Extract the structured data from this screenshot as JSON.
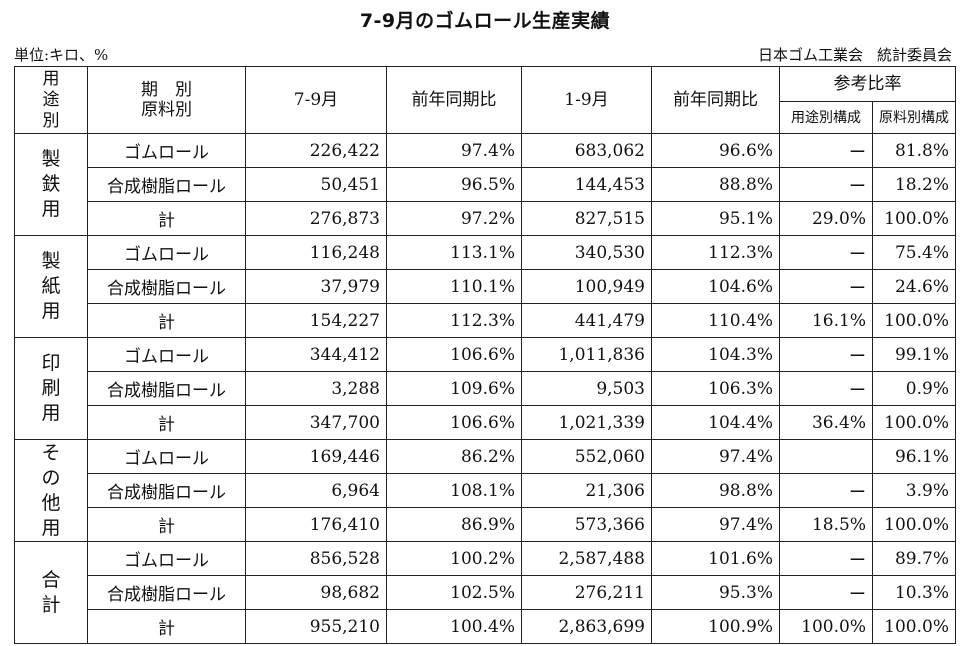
{
  "title": "7-9月のゴムロール生産実績",
  "unit": "単位:キロ、%",
  "org": [
    "日本ゴム工業会",
    "統計委員会"
  ],
  "header": {
    "usage": [
      "用",
      "途",
      "別"
    ],
    "period_material": [
      "期　別",
      "原料別"
    ],
    "q": "7-9月",
    "yoy1": "前年同期比",
    "ytd": "1-9月",
    "yoy2": "前年同期比",
    "ref": "参考比率",
    "ref_usage": "用途別構成",
    "ref_material": "原料別構成"
  },
  "groups": [
    {
      "name": [
        "製",
        "鉄",
        "用"
      ],
      "rows": [
        {
          "material": "ゴムロール",
          "q": "226,422",
          "yoy1": "97.4%",
          "ytd": "683,062",
          "yoy2": "96.6%",
          "usage_share": "ー",
          "material_share": "81.8%"
        },
        {
          "material": "合成樹脂ロール",
          "q": "50,451",
          "yoy1": "96.5%",
          "ytd": "144,453",
          "yoy2": "88.8%",
          "usage_share": "ー",
          "material_share": "18.2%"
        },
        {
          "material": "計",
          "q": "276,873",
          "yoy1": "97.2%",
          "ytd": "827,515",
          "yoy2": "95.1%",
          "usage_share": "29.0%",
          "material_share": "100.0%"
        }
      ]
    },
    {
      "name": [
        "製",
        "紙",
        "用"
      ],
      "rows": [
        {
          "material": "ゴムロール",
          "q": "116,248",
          "yoy1": "113.1%",
          "ytd": "340,530",
          "yoy2": "112.3%",
          "usage_share": "ー",
          "material_share": "75.4%"
        },
        {
          "material": "合成樹脂ロール",
          "q": "37,979",
          "yoy1": "110.1%",
          "ytd": "100,949",
          "yoy2": "104.6%",
          "usage_share": "ー",
          "material_share": "24.6%"
        },
        {
          "material": "計",
          "q": "154,227",
          "yoy1": "112.3%",
          "ytd": "441,479",
          "yoy2": "110.4%",
          "usage_share": "16.1%",
          "material_share": "100.0%"
        }
      ]
    },
    {
      "name": [
        "印",
        "刷",
        "用"
      ],
      "rows": [
        {
          "material": "ゴムロール",
          "q": "344,412",
          "yoy1": "106.6%",
          "ytd": "1,011,836",
          "yoy2": "104.3%",
          "usage_share": "ー",
          "material_share": "99.1%"
        },
        {
          "material": "合成樹脂ロール",
          "q": "3,288",
          "yoy1": "109.6%",
          "ytd": "9,503",
          "yoy2": "106.3%",
          "usage_share": "ー",
          "material_share": "0.9%"
        },
        {
          "material": "計",
          "q": "347,700",
          "yoy1": "106.6%",
          "ytd": "1,021,339",
          "yoy2": "104.4%",
          "usage_share": "36.4%",
          "material_share": "100.0%"
        }
      ]
    },
    {
      "name": [
        "そ",
        "の",
        "他",
        "用"
      ],
      "rows": [
        {
          "material": "ゴムロール",
          "q": "169,446",
          "yoy1": "86.2%",
          "ytd": "552,060",
          "yoy2": "97.4%",
          "usage_share": "",
          "material_share": "96.1%"
        },
        {
          "material": "合成樹脂ロール",
          "q": "6,964",
          "yoy1": "108.1%",
          "ytd": "21,306",
          "yoy2": "98.8%",
          "usage_share": "ー",
          "material_share": "3.9%"
        },
        {
          "material": "計",
          "q": "176,410",
          "yoy1": "86.9%",
          "ytd": "573,366",
          "yoy2": "97.4%",
          "usage_share": "18.5%",
          "material_share": "100.0%"
        }
      ]
    },
    {
      "name": [
        "合",
        "計"
      ],
      "rows": [
        {
          "material": "ゴムロール",
          "q": "856,528",
          "yoy1": "100.2%",
          "ytd": "2,587,488",
          "yoy2": "101.6%",
          "usage_share": "ー",
          "material_share": "89.7%"
        },
        {
          "material": "合成樹脂ロール",
          "q": "98,682",
          "yoy1": "102.5%",
          "ytd": "276,211",
          "yoy2": "95.3%",
          "usage_share": "ー",
          "material_share": "10.3%"
        },
        {
          "material": "計",
          "q": "955,210",
          "yoy1": "100.4%",
          "ytd": "2,863,699",
          "yoy2": "100.9%",
          "usage_share": "100.0%",
          "material_share": "100.0%"
        }
      ]
    }
  ]
}
